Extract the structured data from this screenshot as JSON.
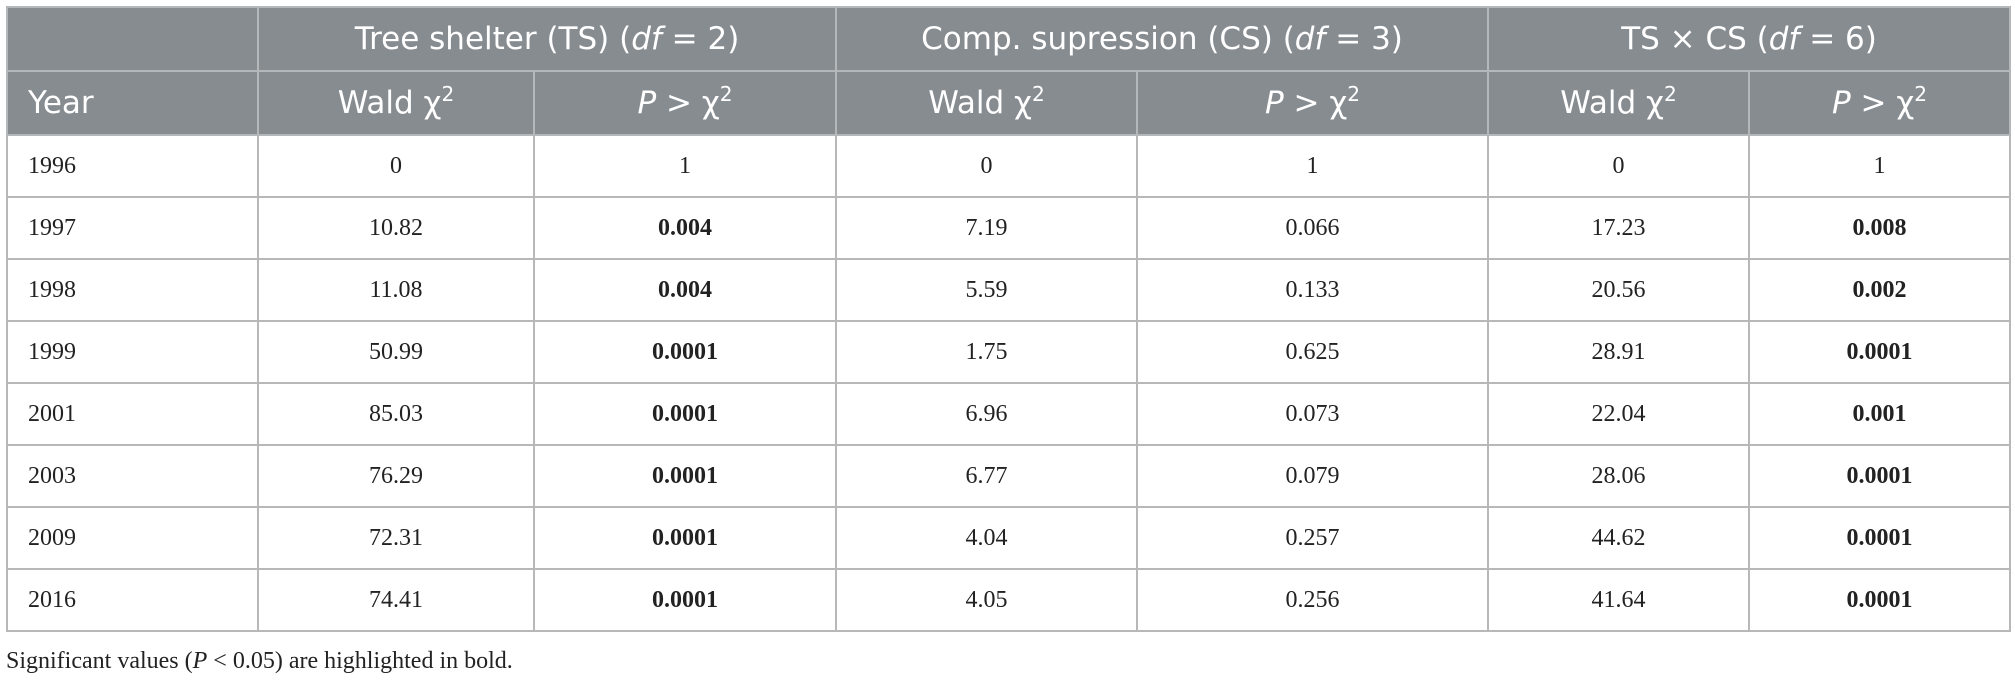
{
  "header": {
    "groups": [
      {
        "parts": [
          "Tree shelter (TS) (",
          "df",
          " = 2)"
        ]
      },
      {
        "parts": [
          "Comp. supression (CS) (",
          "df",
          " = 3)"
        ]
      },
      {
        "parts": [
          "TS × CS (",
          "df",
          " = 6)"
        ]
      }
    ],
    "columns": [
      {
        "parts": [
          "Year"
        ]
      },
      {
        "parts": [
          "Wald χ",
          "2"
        ]
      },
      {
        "parts": [
          "P",
          " > χ",
          "2"
        ]
      },
      {
        "parts": [
          "Wald χ",
          "2"
        ]
      },
      {
        "parts": [
          "P",
          " > χ",
          "2"
        ]
      },
      {
        "parts": [
          "Wald χ",
          "2"
        ]
      },
      {
        "parts": [
          "P",
          " > χ",
          "2"
        ]
      }
    ]
  },
  "table": {
    "rows": [
      {
        "cells": [
          "1996",
          "0",
          "1",
          "0",
          "1",
          "0",
          "1"
        ],
        "bold": []
      },
      {
        "cells": [
          "1997",
          "10.82",
          "0.004",
          "7.19",
          "0.066",
          "17.23",
          "0.008"
        ],
        "bold": [
          2,
          6
        ]
      },
      {
        "cells": [
          "1998",
          "11.08",
          "0.004",
          "5.59",
          "0.133",
          "20.56",
          "0.002"
        ],
        "bold": [
          2,
          6
        ]
      },
      {
        "cells": [
          "1999",
          "50.99",
          "0.0001",
          "1.75",
          "0.625",
          "28.91",
          "0.0001"
        ],
        "bold": [
          2,
          6
        ]
      },
      {
        "cells": [
          "2001",
          "85.03",
          "0.0001",
          "6.96",
          "0.073",
          "22.04",
          "0.001"
        ],
        "bold": [
          2,
          6
        ]
      },
      {
        "cells": [
          "2003",
          "76.29",
          "0.0001",
          "6.77",
          "0.079",
          "28.06",
          "0.0001"
        ],
        "bold": [
          2,
          6
        ]
      },
      {
        "cells": [
          "2009",
          "72.31",
          "0.0001",
          "4.04",
          "0.257",
          "44.62",
          "0.0001"
        ],
        "bold": [
          2,
          6
        ]
      },
      {
        "cells": [
          "2016",
          "74.41",
          "0.0001",
          "4.05",
          "0.256",
          "41.64",
          "0.0001"
        ],
        "bold": [
          2,
          6
        ]
      }
    ]
  },
  "footnote": {
    "parts": [
      "Significant values (",
      "P",
      " < 0.05) are highlighted in bold."
    ]
  }
}
